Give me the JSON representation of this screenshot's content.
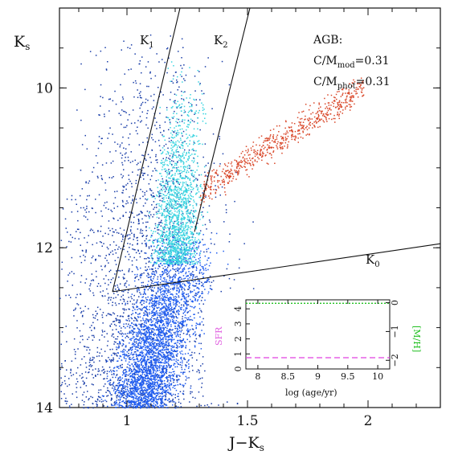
{
  "chart_data": [
    {
      "type": "scatter",
      "title": "",
      "xlabel_main": "J",
      "xlabel_minus": "−",
      "xlabel_sym": "K",
      "xlabel_sub": "s",
      "ylabel_sym": "K",
      "ylabel_sub": "s",
      "xlim": [
        0.72,
        2.3
      ],
      "ylim": [
        14,
        9.0
      ],
      "y_inverted": true,
      "x_ticks": [
        1,
        1.5,
        2
      ],
      "x_tick_labels": [
        "1",
        "1.5",
        "2"
      ],
      "y_ticks": [
        10,
        12,
        14
      ],
      "y_tick_labels": [
        "10",
        "12",
        "14"
      ],
      "grid": false,
      "annotation": {
        "heading": "AGB:",
        "line1": {
          "prefix": "C/M",
          "sub": "mod",
          "suffix": "=0.31"
        },
        "line2": {
          "prefix": "C/M",
          "sub": "phot",
          "suffix": "=0.31"
        }
      },
      "boundary_labels": [
        {
          "sym": "K",
          "sub": "1"
        },
        {
          "sym": "K",
          "sub": "2"
        },
        {
          "sym": "K",
          "sub": "0"
        }
      ],
      "boundaries": {
        "K1_line": [
          [
            0.94,
            12.55
          ],
          [
            1.22,
            9.0
          ]
        ],
        "K2_line": [
          [
            1.28,
            11.8
          ],
          [
            1.51,
            9.0
          ]
        ],
        "K0_line": [
          [
            0.94,
            12.55
          ],
          [
            2.3,
            11.95
          ]
        ]
      },
      "series": [
        {
          "color": "#1a3ea8",
          "x_range": [
            0.75,
            1.25
          ],
          "y_range": [
            9.3,
            14.0
          ]
        },
        {
          "color": "#1f5cf0",
          "x_range": [
            0.85,
            1.3
          ],
          "y_range": [
            11.8,
            14.0
          ]
        },
        {
          "color": "#3ad4e0",
          "x_range": [
            1.05,
            1.32
          ],
          "y_range": [
            9.5,
            12.2
          ]
        },
        {
          "color": "#d9482a",
          "x_range": [
            1.3,
            2.0
          ],
          "y_range": [
            9.7,
            11.4
          ]
        }
      ]
    },
    {
      "type": "line",
      "xlabel": "log (age/yr)",
      "ylabel_left": "SFR",
      "ylabel_right": "[M/H]",
      "xlim": [
        7.8,
        10.2
      ],
      "ylim_left": [
        0,
        4.6
      ],
      "ylim_right": [
        -2.3,
        0.1
      ],
      "x_ticks": [
        8,
        8.5,
        9,
        9.5,
        10
      ],
      "x_tick_labels": [
        "8",
        "8.5",
        "9",
        "9.5",
        "10"
      ],
      "y_left_ticks": [
        0,
        1,
        2,
        3,
        4
      ],
      "y_left_tick_labels": [
        "0",
        "1",
        "2",
        "3",
        "4"
      ],
      "y_right_ticks": [
        0,
        -1,
        -2
      ],
      "y_right_tick_labels": [
        "0",
        "−1",
        "−2"
      ],
      "series": [
        {
          "name": "SFR",
          "color": "#e040e0",
          "style": "dashed",
          "x": [
            7.8,
            10.2
          ],
          "values": [
            0.75,
            0.75
          ]
        },
        {
          "name": "[M/H]",
          "color": "#22c022",
          "style": "dotted",
          "x": [
            7.8,
            10.2
          ],
          "values": [
            -0.02,
            -0.02
          ]
        }
      ],
      "colors": {
        "sfr_label": "#e060e0",
        "mh_label": "#22c022"
      }
    }
  ]
}
